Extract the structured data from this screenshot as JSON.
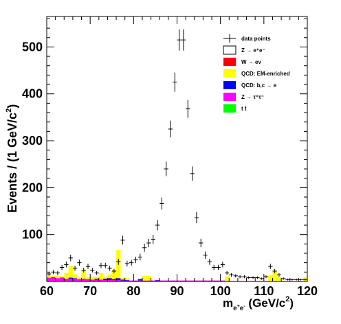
{
  "chart_data": {
    "type": "bar",
    "stacked": true,
    "title": "",
    "xlabel": {
      "base": "m",
      "sub_base": "e",
      "sub_sup1": "+",
      "sub_mid": "e",
      "sub_sup2": "-",
      "rest": " (GeV/c",
      "sup": "2",
      "end": ")"
    },
    "ylabel": {
      "main": "Events / (1 GeV/c",
      "sup": "2",
      "end": ")"
    },
    "xlim": [
      60,
      120
    ],
    "ylim": [
      0,
      565
    ],
    "x_ticks": [
      60,
      70,
      80,
      90,
      100,
      110,
      120
    ],
    "y_ticks": [
      100,
      200,
      300,
      400,
      500
    ],
    "x_tick_labels": [
      "60",
      "70",
      "80",
      "90",
      "100",
      "110",
      "120"
    ],
    "y_tick_labels": [
      "100",
      "200",
      "300",
      "400",
      "500"
    ],
    "grid": false,
    "legend_position": "top-right",
    "legend": [
      {
        "id": "data",
        "label": "data points",
        "marker": "errorbar"
      },
      {
        "id": "zee",
        "label": "Z → e⁺e⁻",
        "color": "#ffffff"
      },
      {
        "id": "wenu",
        "label": "W → eν",
        "color": "#ff0000"
      },
      {
        "id": "qcdem",
        "label": "QCD: EM-enriched",
        "color": "#ffff00"
      },
      {
        "id": "qcdbc",
        "label": "QCD: b,c → e",
        "color": "#0000ff"
      },
      {
        "id": "ztt",
        "label": "Z → τ⁺τ⁻",
        "color": "#ff00ff"
      },
      {
        "id": "ttbar",
        "label": "t t̄",
        "color": "#00ff00"
      }
    ],
    "bin_edges_start": 60,
    "bin_width": 1,
    "series": [
      {
        "id": "ztt",
        "color": "#ff00ff",
        "values": [
          8,
          8,
          7,
          7,
          6,
          6,
          6,
          5,
          5,
          5,
          4,
          4,
          4,
          3,
          3,
          3,
          3,
          2,
          2,
          2,
          2,
          2,
          2,
          2,
          2,
          2,
          2,
          2,
          2,
          2,
          2,
          2,
          2,
          2,
          2,
          2,
          2,
          2,
          2,
          2,
          2,
          1,
          1,
          1,
          1,
          1,
          1,
          1,
          1,
          1,
          1,
          1,
          1,
          1,
          1,
          1,
          1,
          1,
          1,
          1
        ]
      },
      {
        "id": "qcdbc",
        "color": "#0000ff",
        "values": [
          0,
          1,
          0,
          1,
          0,
          2,
          1,
          0,
          1,
          0,
          0,
          2,
          0,
          3,
          4,
          2,
          4,
          2,
          1,
          0,
          0,
          3,
          0,
          0,
          0,
          1,
          0,
          0,
          0,
          0,
          0,
          0,
          0,
          0,
          0,
          0,
          0,
          0,
          0,
          0,
          0,
          0,
          0,
          0,
          0,
          0,
          0,
          0,
          0,
          0,
          0,
          0,
          0,
          0,
          0,
          0,
          0,
          0,
          0,
          0
        ]
      },
      {
        "id": "qcdem",
        "color": "#ffff00",
        "values": [
          4,
          3,
          5,
          3,
          12,
          25,
          8,
          4,
          18,
          4,
          6,
          4,
          14,
          4,
          8,
          20,
          60,
          4,
          4,
          0,
          0,
          0,
          10,
          10,
          0,
          0,
          0,
          0,
          0,
          0,
          0,
          0,
          0,
          0,
          0,
          0,
          0,
          0,
          0,
          0,
          0,
          10,
          0,
          0,
          0,
          0,
          0,
          0,
          0,
          0,
          0,
          12,
          20,
          8,
          0,
          0,
          0,
          0,
          0,
          8
        ]
      }
    ],
    "data_points": {
      "x": [
        60.5,
        61.5,
        62.5,
        63.5,
        64.5,
        65.5,
        66.5,
        67.5,
        68.5,
        69.5,
        70.5,
        71.5,
        72.5,
        73.5,
        74.5,
        75.5,
        76.5,
        77.5,
        78.5,
        79.5,
        80.5,
        81.5,
        82.5,
        83.5,
        84.5,
        85.5,
        86.5,
        87.5,
        88.5,
        89.5,
        90.5,
        91.5,
        92.5,
        93.5,
        94.5,
        95.5,
        96.5,
        97.5,
        98.5,
        99.5,
        100.5,
        101.5,
        102.5,
        103.5,
        104.5,
        105.5,
        106.5,
        107.5,
        108.5,
        109.5,
        110.5,
        111.5,
        112.5,
        113.5,
        114.5,
        115.5,
        116.5,
        117.5,
        118.5,
        119.5
      ],
      "y": [
        16,
        20,
        18,
        30,
        36,
        50,
        28,
        40,
        24,
        32,
        24,
        18,
        34,
        34,
        28,
        22,
        42,
        88,
        38,
        40,
        46,
        52,
        72,
        82,
        90,
        120,
        166,
        240,
        325,
        425,
        515,
        515,
        368,
        230,
        136,
        82,
        56,
        42,
        30,
        30,
        36,
        18,
        14,
        12,
        10,
        10,
        8,
        8,
        8,
        6,
        10,
        32,
        22,
        14,
        6,
        4,
        4,
        4,
        4,
        4
      ],
      "err": [
        4,
        4.5,
        4.2,
        5.5,
        6,
        7,
        5.3,
        6.3,
        4.9,
        5.7,
        4.9,
        4.2,
        5.8,
        5.8,
        5.3,
        4.7,
        6.5,
        9.4,
        6.2,
        6.3,
        6.8,
        7.2,
        8.5,
        9.1,
        9.5,
        11,
        12.9,
        15.5,
        18,
        20.6,
        22.7,
        22.7,
        19.2,
        15.2,
        11.7,
        9.1,
        7.5,
        6.5,
        5.5,
        5.5,
        6,
        4.2,
        3.7,
        3.5,
        3.2,
        3.2,
        2.8,
        2.8,
        2.8,
        2.4,
        3.2,
        5.7,
        4.7,
        3.7,
        2.4,
        2,
        2,
        2,
        2,
        2
      ]
    }
  }
}
